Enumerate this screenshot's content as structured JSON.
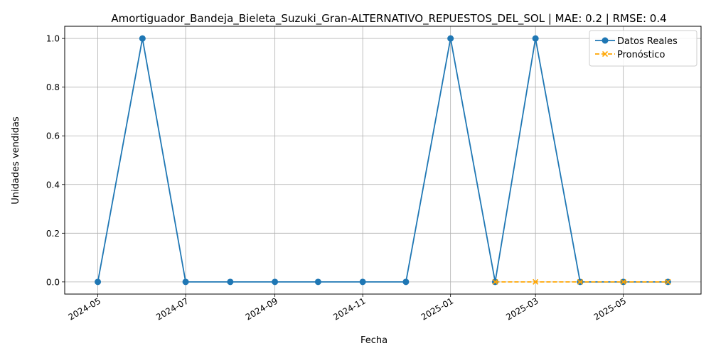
{
  "chart_data": {
    "type": "line",
    "title": "Amortiguador_Bandeja_Bieleta_Suzuki_Gran-ALTERNATIVO_REPUESTOS_DEL_SOL | MAE: 0.2 | RMSE: 0.4",
    "xlabel": "Fecha",
    "ylabel": "Unidades vendidas",
    "x_ticks": [
      "2024-05",
      "2024-07",
      "2024-09",
      "2024-11",
      "2025-01",
      "2025-03",
      "2025-05"
    ],
    "y_ticks": [
      "0.0",
      "0.2",
      "0.4",
      "0.6",
      "0.8",
      "1.0"
    ],
    "xlim": [
      "2024-04-08",
      "2025-06-24"
    ],
    "ylim": [
      -0.05,
      1.05
    ],
    "grid": true,
    "legend_position": "top-right",
    "series": [
      {
        "name": "Datos Reales",
        "color": "#1f77b4",
        "marker": "circle",
        "line_style": "solid",
        "x": [
          "2024-05-01",
          "2024-06-01",
          "2024-07-01",
          "2024-08-01",
          "2024-09-01",
          "2024-10-01",
          "2024-11-01",
          "2024-12-01",
          "2025-01-01",
          "2025-02-01",
          "2025-03-01",
          "2025-04-01",
          "2025-05-01",
          "2025-06-01"
        ],
        "values": [
          0,
          1,
          0,
          0,
          0,
          0,
          0,
          0,
          1,
          0,
          1,
          0,
          0,
          0
        ]
      },
      {
        "name": "Pronóstico",
        "color": "#ffa500",
        "marker": "x",
        "line_style": "dashed",
        "x": [
          "2025-02-01",
          "2025-03-01",
          "2025-04-01",
          "2025-05-01",
          "2025-06-01"
        ],
        "values": [
          0,
          0,
          0,
          0,
          0
        ]
      }
    ]
  }
}
